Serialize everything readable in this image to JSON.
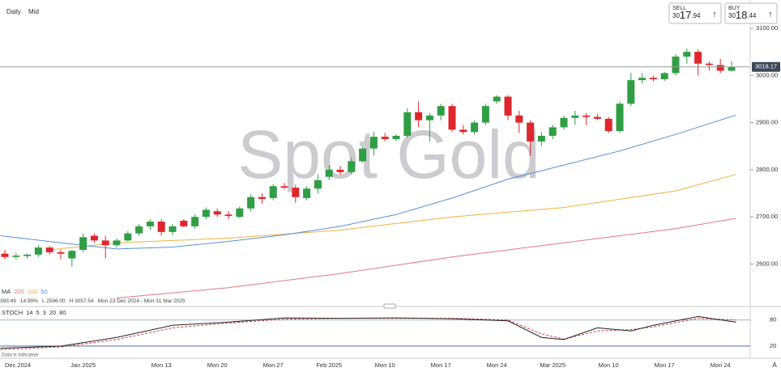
{
  "chart_data": {
    "type": "candlestick",
    "title": "Spot Gold",
    "timeframe": "Daily",
    "price_type": "Mid",
    "sell": {
      "label": "SELL",
      "parts": [
        "30",
        "17",
        ".94"
      ]
    },
    "buy": {
      "label": "BUY",
      "parts": [
        "30",
        "18",
        ".44"
      ]
    },
    "categories": [
      "Dec 2024",
      null,
      null,
      null,
      null,
      null,
      null,
      "Jan 2025",
      null,
      null,
      null,
      null,
      null,
      null,
      "Mon 13",
      null,
      null,
      null,
      null,
      "Mon 20",
      null,
      null,
      null,
      null,
      "Mon 27",
      null,
      null,
      null,
      null,
      "Feb 2025",
      null,
      null,
      null,
      null,
      "Mon 10",
      null,
      null,
      null,
      null,
      "Mon 17",
      null,
      null,
      null,
      null,
      "Mon 24",
      null,
      null,
      null,
      null,
      "Mar 2025",
      null,
      null,
      null,
      null,
      "Mon 10",
      null,
      null,
      null,
      null,
      "Mon 17",
      null,
      null,
      null,
      null,
      "Mon 24",
      null
    ],
    "x_edge_label": "A",
    "open": [
      2622,
      2615,
      2617,
      2620,
      2635,
      2625,
      2612,
      2630,
      2660,
      2650,
      2640,
      2650,
      2665,
      2680,
      2690,
      2668,
      2692,
      2680,
      2700,
      2712,
      2705,
      2700,
      2718,
      2742,
      2740,
      2765,
      2762,
      2740,
      2760,
      2785,
      2800,
      2795,
      2818,
      2845,
      2870,
      2865,
      2872,
      2922,
      2905,
      2915,
      2935,
      2885,
      2880,
      2900,
      2945,
      2955,
      2915,
      2900,
      2860,
      2872,
      2890,
      2910,
      2915,
      2912,
      2908,
      2882,
      2940,
      2990,
      2995,
      2992,
      3005,
      3040,
      3050,
      3025,
      3022,
      3010
    ],
    "high": [
      2630,
      2624,
      2622,
      2640,
      2638,
      2630,
      2630,
      2665,
      2665,
      2660,
      2655,
      2670,
      2685,
      2695,
      2695,
      2685,
      2695,
      2705,
      2720,
      2718,
      2712,
      2722,
      2748,
      2750,
      2770,
      2772,
      2768,
      2765,
      2790,
      2810,
      2808,
      2825,
      2850,
      2880,
      2878,
      2875,
      2930,
      2945,
      2920,
      2940,
      2940,
      2895,
      2905,
      2940,
      2958,
      2958,
      2925,
      2905,
      2880,
      2895,
      2915,
      2925,
      2920,
      2918,
      2912,
      2945,
      3005,
      3005,
      3000,
      3008,
      3045,
      3057,
      3055,
      3030,
      3035,
      3030
    ],
    "low": [
      2610,
      2610,
      2612,
      2615,
      2620,
      2610,
      2595,
      2625,
      2645,
      2612,
      2635,
      2648,
      2660,
      2672,
      2660,
      2662,
      2678,
      2675,
      2695,
      2700,
      2695,
      2698,
      2712,
      2728,
      2735,
      2758,
      2730,
      2735,
      2750,
      2778,
      2790,
      2790,
      2815,
      2830,
      2860,
      2860,
      2868,
      2890,
      2860,
      2905,
      2880,
      2875,
      2875,
      2895,
      2940,
      2905,
      2878,
      2830,
      2850,
      2865,
      2885,
      2895,
      2895,
      2905,
      2878,
      2878,
      2935,
      2983,
      2988,
      2988,
      3000,
      3025,
      3000,
      3010,
      3005,
      3008
    ],
    "close": [
      2615,
      2618,
      2620,
      2635,
      2625,
      2622,
      2628,
      2657,
      2650,
      2640,
      2650,
      2665,
      2680,
      2690,
      2668,
      2680,
      2680,
      2700,
      2715,
      2705,
      2702,
      2718,
      2742,
      2738,
      2765,
      2762,
      2742,
      2760,
      2778,
      2800,
      2795,
      2818,
      2845,
      2870,
      2865,
      2872,
      2922,
      2905,
      2915,
      2935,
      2885,
      2880,
      2900,
      2935,
      2955,
      2915,
      2900,
      2860,
      2872,
      2890,
      2910,
      2915,
      2912,
      2908,
      2882,
      2940,
      2990,
      2995,
      2992,
      3005,
      3040,
      3050,
      3025,
      3022,
      3010,
      3018
    ],
    "up_color": "#2f9e44",
    "down_color": "#e0262d",
    "ylim": [
      2522,
      3160
    ],
    "yticks": [
      {
        "value": 3100,
        "label": "3100.00"
      },
      {
        "value": 3000,
        "label": "3000.00"
      },
      {
        "value": 2900,
        "label": "2900.00"
      },
      {
        "value": 2800,
        "label": "2800.00"
      },
      {
        "value": 2700,
        "label": "2700.00"
      },
      {
        "value": 2600,
        "label": "2600.00"
      }
    ],
    "current_price": 3018.17,
    "ma_label": "MA",
    "moving_averages": [
      {
        "name": "200",
        "color": "#e07a7a",
        "x": [
          10,
          20,
          30,
          40,
          50,
          60,
          65.4
        ],
        "values": [
          2528,
          2550,
          2580,
          2615,
          2645,
          2675,
          2697
        ]
      },
      {
        "name": "100",
        "color": "#f0b040",
        "x": [
          4,
          10,
          20,
          30,
          40,
          50,
          60,
          65.4
        ],
        "values": [
          2630,
          2645,
          2655,
          2672,
          2700,
          2720,
          2755,
          2790
        ]
      },
      {
        "name": "50",
        "color": "#5b8fd6",
        "x": [
          -0.4,
          5,
          10,
          15,
          20,
          25,
          30,
          35,
          40,
          45,
          50,
          55,
          60,
          65.4
        ],
        "values": [
          2660,
          2645,
          2632,
          2636,
          2648,
          2662,
          2680,
          2705,
          2740,
          2780,
          2810,
          2840,
          2875,
          2916
        ]
      }
    ],
    "stats": [
      "393.49",
      "14.99%",
      "L 2596.00",
      "H 3057.54",
      "Mon 23 Dec 2024 - Mon 31 Mar 2025"
    ],
    "stochastic": {
      "label": "STOCH",
      "params": [
        14,
        5,
        3,
        20,
        80
      ],
      "ylim": [
        0,
        100
      ],
      "yticks": [
        80,
        20
      ],
      "k": {
        "color": "#222222",
        "x": [
          -0.4,
          5,
          10,
          15,
          20,
          25,
          30,
          35,
          40,
          45,
          48,
          50,
          53,
          56,
          58,
          62,
          65.4
        ],
        "values": [
          15,
          20,
          40,
          68,
          75,
          85,
          84,
          85,
          83,
          78,
          40,
          35,
          62,
          55,
          68,
          88,
          75
        ]
      },
      "d": {
        "color": "#d04040",
        "x": [
          -0.4,
          5,
          10,
          15,
          20,
          25,
          30,
          35,
          40,
          45,
          48,
          50,
          53,
          56,
          58,
          62,
          65.4
        ],
        "values": [
          12,
          18,
          35,
          62,
          73,
          82,
          84,
          84,
          84,
          80,
          48,
          36,
          55,
          58,
          64,
          84,
          80
        ]
      }
    },
    "note": "Data is indicative"
  }
}
